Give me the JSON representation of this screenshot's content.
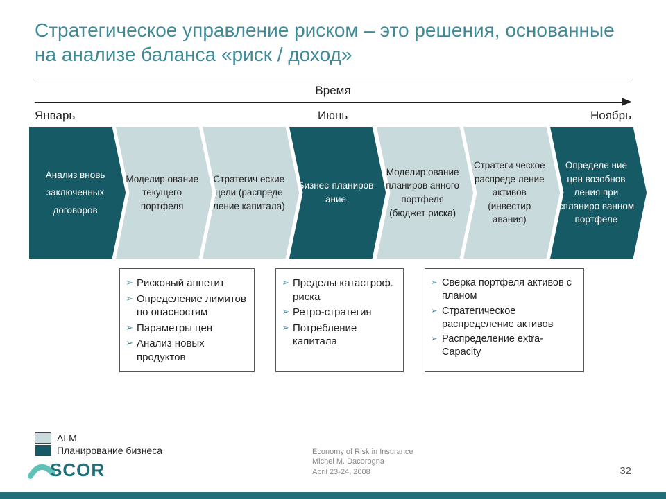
{
  "colors": {
    "dark": "#165a66",
    "light": "#c9dadd",
    "title": "#3f8a98",
    "bullet": "#3f8a98",
    "bar": "#1f6e78",
    "logo_arc": "#60c1b9",
    "logo_text": "#1f6e78"
  },
  "title": "Стратегическое управление риском – это решения, основанные на анализе баланса «риск / доход»",
  "timeline": {
    "label": "Время",
    "months": [
      "Январь",
      "Июнь",
      "Ноябрь"
    ]
  },
  "steps": [
    {
      "text": "Анализ вновь заключенных договоров",
      "shade": "dark",
      "first": true
    },
    {
      "text": "Моделир ование текущего портфеля",
      "shade": "light"
    },
    {
      "text": "Стратегич еские цели (распреде ление капитала)",
      "shade": "light"
    },
    {
      "text": "Бизнес-планиров ание",
      "shade": "dark"
    },
    {
      "text": "Моделир ование планиров анного портфеля (бюджет риска)",
      "shade": "light"
    },
    {
      "text": "Стратеги ческое распреде ление активов (инвестир авания)",
      "shade": "light"
    },
    {
      "text": "Определе ние цен возобнов ления при спланиро ванном портфеле",
      "shade": "dark"
    }
  ],
  "boxes": [
    {
      "cls": "b1",
      "items": [
        "Рисковый аппетит",
        "Определение лимитов по опасностям",
        "Параметры цен",
        "Анализ новых продуктов"
      ]
    },
    {
      "cls": "b2",
      "items": [
        "Пределы катастроф. риска",
        "Ретро-стратегия",
        "Потребление капитала"
      ]
    },
    {
      "cls": "b3",
      "items": [
        "Сверка портфеля активов с планом",
        "Стратегическое распределение активов",
        "Распределение extra-Capacity"
      ]
    }
  ],
  "legend": [
    {
      "color": "#c9dadd",
      "label": "ALM"
    },
    {
      "color": "#165a66",
      "label": "Планирование бизнеса"
    }
  ],
  "footer": {
    "source_lines": [
      "Economy of Risk in Insurance",
      "Michel M. Dacorogna",
      "April 23-24, 2008"
    ],
    "page": "32",
    "logo_text": "SCOR"
  }
}
